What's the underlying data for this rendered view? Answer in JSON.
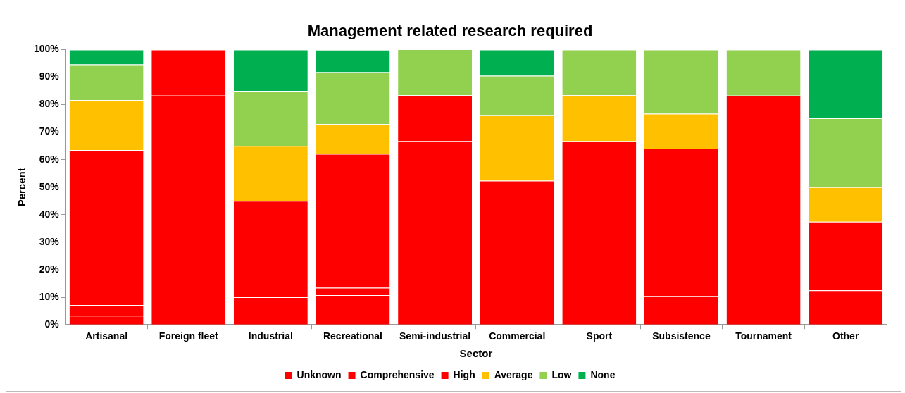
{
  "chart_data": {
    "type": "bar",
    "title": "Management related research required",
    "xlabel": "Sector",
    "ylabel": "Percent",
    "categories": [
      "Artisanal",
      "Foreign fleet",
      "Industrial",
      "Recreational",
      "Semi-industrial",
      "Commercial",
      "Sport",
      "Subsistence",
      "Tournament",
      "Other"
    ],
    "stacked": true,
    "ylim": [
      0,
      100
    ],
    "yticks": [
      {
        "value": 0,
        "label": "0%"
      },
      {
        "value": 10,
        "label": "10%"
      },
      {
        "value": 20,
        "label": "20%"
      },
      {
        "value": 30,
        "label": "30%"
      },
      {
        "value": 40,
        "label": "40%"
      },
      {
        "value": 50,
        "label": "50%"
      },
      {
        "value": 60,
        "label": "60%"
      },
      {
        "value": 70,
        "label": "70%"
      },
      {
        "value": 80,
        "label": "80%"
      },
      {
        "value": 90,
        "label": "90%"
      },
      {
        "value": 100,
        "label": "100%"
      }
    ],
    "grid": false,
    "legend": "bottom",
    "series": [
      {
        "name": "Unknown",
        "color": "#ff0000",
        "values": [
          3.3,
          0,
          10,
          10.8,
          0,
          9.5,
          0,
          5.2,
          0,
          12.5
        ]
      },
      {
        "name": "Comprehensive",
        "color": "#ff0000",
        "values": [
          3.9,
          83.3,
          10,
          2.7,
          66.7,
          0,
          66.7,
          5.2,
          83.3,
          0
        ]
      },
      {
        "name": "High",
        "color": "#ff0000",
        "values": [
          56.3,
          16.7,
          25,
          48.6,
          16.7,
          42.9,
          0,
          53.6,
          0,
          25
        ]
      },
      {
        "name": "Average",
        "color": "#ffc000",
        "values": [
          18.2,
          0,
          20,
          10.8,
          0,
          23.8,
          16.7,
          12.7,
          0,
          12.5
        ]
      },
      {
        "name": "Low",
        "color": "#92d050",
        "values": [
          12.9,
          0,
          20,
          18.9,
          16.7,
          14.3,
          16.6,
          23.3,
          16.7,
          25
        ]
      },
      {
        "name": "None",
        "color": "#00b050",
        "values": [
          5.4,
          0,
          15,
          8.1,
          0,
          9.5,
          0,
          0,
          0,
          25
        ]
      }
    ]
  }
}
